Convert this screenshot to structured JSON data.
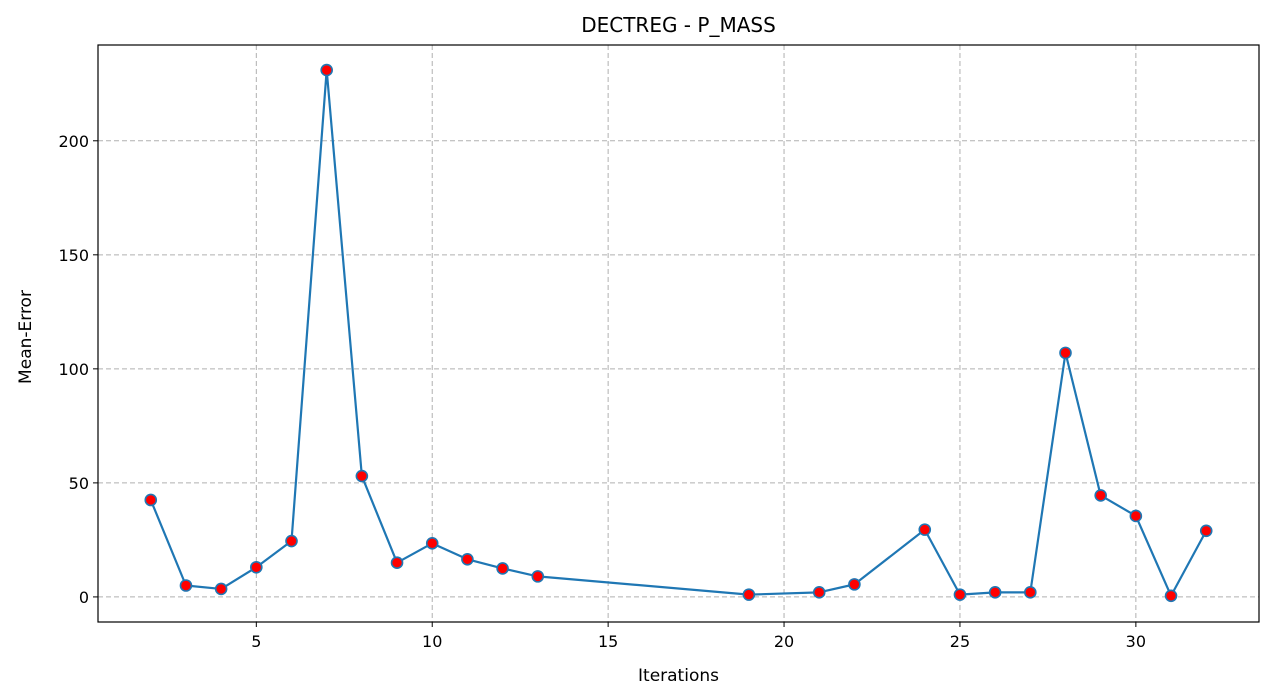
{
  "chart_data": {
    "type": "line",
    "title": "DECTREG - P_MASS",
    "xlabel": "Iterations",
    "ylabel": "Mean-Error",
    "xlim": [
      0.5,
      33.5
    ],
    "ylim": [
      -11,
      242
    ],
    "xticks": [
      5,
      10,
      15,
      20,
      25,
      30
    ],
    "yticks": [
      0,
      50,
      100,
      150,
      200
    ],
    "grid": true,
    "colors": {
      "line": "#1f77b4",
      "marker_fill": "#ff0000",
      "marker_edge": "#1f77b4",
      "grid": "#b0b0b0"
    },
    "series": [
      {
        "x": [
          2,
          3,
          4,
          5,
          6,
          7,
          8,
          9,
          10,
          11,
          12,
          13,
          19,
          21,
          22,
          24,
          25,
          26,
          27,
          28,
          29,
          30,
          31,
          32
        ],
        "y": [
          42.5,
          5,
          3.5,
          13,
          24.5,
          231,
          53,
          15,
          23.5,
          16.5,
          12.5,
          9,
          1,
          2,
          5.5,
          29.5,
          1,
          2,
          2,
          107,
          44.5,
          35.5,
          0.5,
          29
        ]
      }
    ]
  }
}
